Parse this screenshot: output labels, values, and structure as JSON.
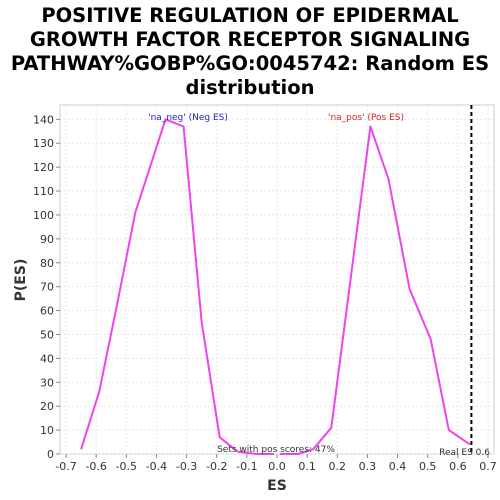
{
  "chart_data": {
    "type": "line",
    "title_lines": [
      "POSITIVE REGULATION OF EPIDERMAL",
      "GROWTH FACTOR RECEPTOR SIGNALING",
      "PATHWAY%GOBP%GO:0045742: Random ES",
      "distribution"
    ],
    "xlabel": "ES",
    "ylabel": "P(ES)",
    "xlim": [
      -0.72,
      0.72
    ],
    "ylim": [
      0,
      146
    ],
    "xticks": [
      "-0.7",
      "-0.6",
      "-0.5",
      "-0.4",
      "-0.3",
      "-0.2",
      "-0.1",
      "0.0",
      "0.1",
      "0.2",
      "0.3",
      "0.4",
      "0.5",
      "0.6",
      "0.7"
    ],
    "yticks": [
      "0",
      "10",
      "20",
      "30",
      "40",
      "50",
      "60",
      "70",
      "80",
      "90",
      "100",
      "110",
      "120",
      "130",
      "140"
    ],
    "grid": true,
    "series": [
      {
        "name": "'na_neg' (Neg ES)",
        "x": [
          -0.65,
          -0.59,
          -0.53,
          -0.47,
          -0.37,
          -0.31,
          -0.25,
          -0.19,
          -0.13,
          -0.07,
          -0.01
        ],
        "values": [
          2,
          26,
          63,
          101,
          140,
          137,
          55,
          7,
          1,
          0,
          0
        ]
      },
      {
        "name": "'na_pos' (Pos ES)",
        "x": [
          0.01,
          0.07,
          0.12,
          0.18,
          0.31,
          0.37,
          0.44,
          0.51,
          0.57,
          0.64
        ],
        "values": [
          0,
          0,
          2,
          11,
          137,
          115,
          69,
          48,
          10,
          4
        ]
      }
    ],
    "line_color": "#ee44ee",
    "neg_label_color": "#2222cc",
    "pos_label_color": "#dd2222",
    "real_es_line_x": 0.645,
    "annotations": {
      "neg_label": "'na_neg' (Neg ES)",
      "pos_label": "'na_pos' (Pos ES)",
      "pos_scores": "Sets with pos scores: 47%",
      "real_es": "Real ES 0.6"
    }
  }
}
